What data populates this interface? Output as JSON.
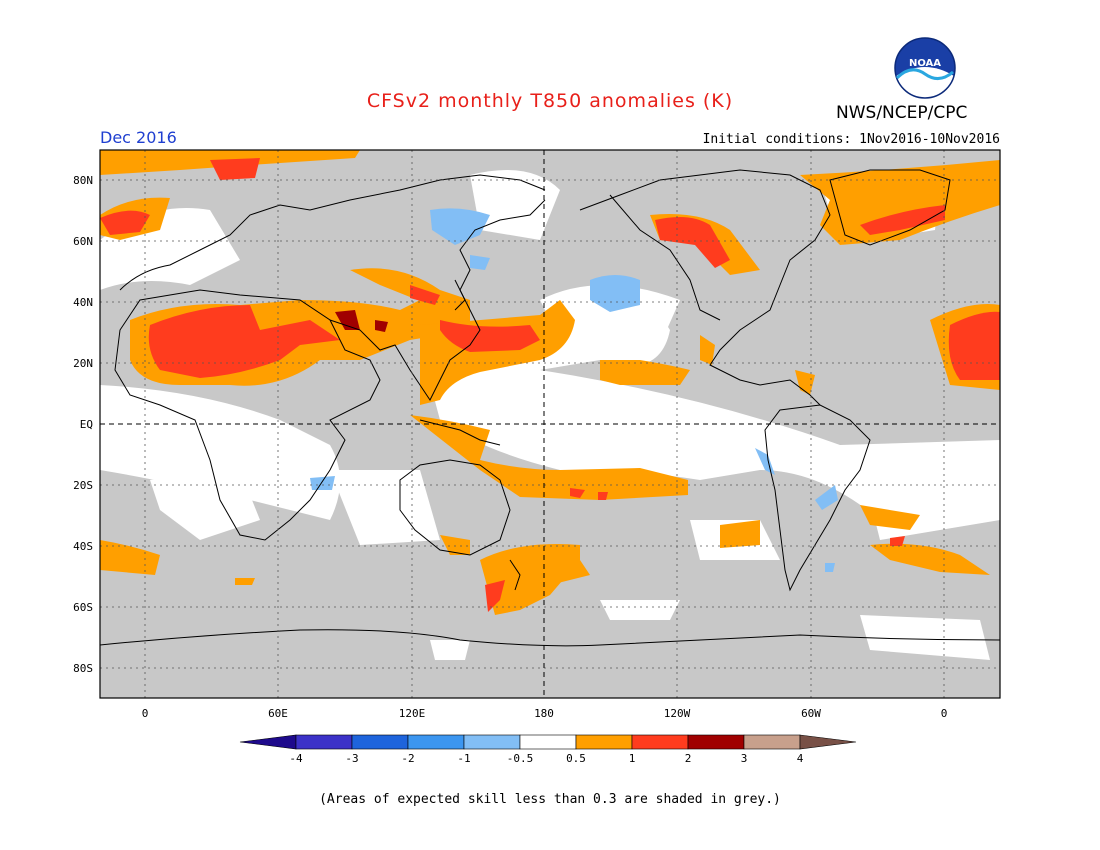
{
  "header": {
    "title": "CFSv2 monthly T850 anomalies (K)",
    "agency": "NWS/NCEP/CPC",
    "logo_text": "NOAA",
    "period": "Dec 2016",
    "initial_conditions": "Initial conditions: 1Nov2016-10Nov2016"
  },
  "map": {
    "lat_labels": [
      "80N",
      "60N",
      "40N",
      "20N",
      "EQ",
      "20S",
      "40S",
      "60S",
      "80S"
    ],
    "lon_labels": [
      "0",
      "60E",
      "120E",
      "180",
      "120W",
      "60W",
      "0"
    ],
    "colors": {
      "no_skill_grey": "#c8c8c8",
      "ocean_white": "#ffffff",
      "coast": "#000000"
    }
  },
  "colorbar": {
    "labels": [
      "-4",
      "-3",
      "-2",
      "-1",
      "-0.5",
      "0.5",
      "1",
      "2",
      "3",
      "4"
    ],
    "colors": [
      "#1e0a8c",
      "#3c32c8",
      "#1e64dc",
      "#3c96f0",
      "#82bef5",
      "#ffffff",
      "#ff9f00",
      "#ff3c1e",
      "#a00000",
      "#c8a08c",
      "#785046"
    ]
  },
  "footnote": "(Areas of expected skill less than 0.3 are shaded in grey.)"
}
